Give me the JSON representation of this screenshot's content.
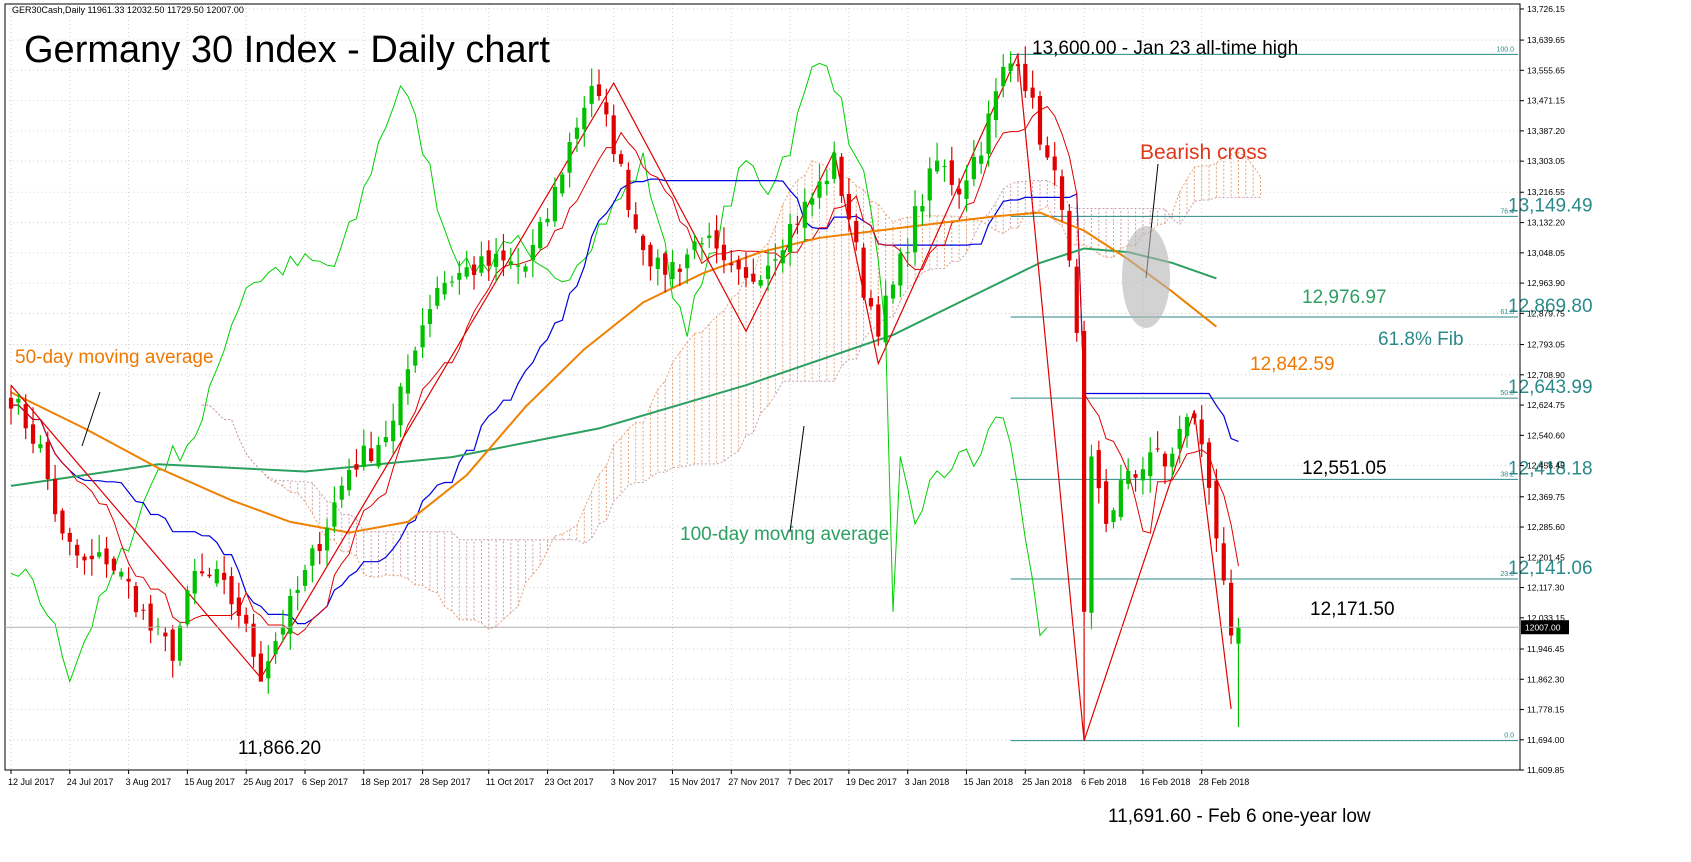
{
  "header": {
    "symbol_info": "GER30Cash,Daily  11961.33 12032.50 11729.50 12007.00",
    "title": "Germany 30 Index - Daily chart"
  },
  "colors": {
    "up": "#00c000",
    "down": "#e00000",
    "ma50": "#f08000",
    "ma100": "#2ca060",
    "fib": "#2a8a8a",
    "tenkan": "#e00000",
    "kijun": "#0000e0",
    "chikou": "#00d000",
    "cloud_bull": "#e8a37a",
    "cloud_bear": "#c8a0b0",
    "zigzag": "#e00000",
    "annot_red": "#e0361a",
    "annot_orange": "#f07800",
    "annot_green": "#2ca060",
    "annot_teal": "#2a8a8a"
  },
  "chart_data": {
    "type": "candlestick",
    "title": "Germany 30 Index - Daily chart",
    "instrument": "GER30Cash",
    "timeframe": "Daily",
    "ohlc_last": {
      "open": 11961.33,
      "high": 12032.5,
      "low": 11729.5,
      "close": 12007.0
    },
    "ylim": [
      11610,
      13740
    ],
    "grid": true,
    "y_ticks": [
      "13,726.15",
      "13,639.65",
      "13,555.65",
      "13,471.15",
      "13,387.20",
      "13,303.05",
      "13,216.55",
      "13,132.20",
      "13,048.05",
      "12,963.90",
      "12,879.75",
      "12,793.05",
      "12,708.90",
      "12,624.75",
      "12,540.60",
      "12,456.45",
      "12,369.75",
      "12,285.60",
      "12,201.45",
      "12,117.30",
      "12,033.15",
      "11,946.45",
      "11,862.30",
      "11,778.15",
      "11,694.00",
      "11,609.85"
    ],
    "y_tick_values": [
      13726.15,
      13639.65,
      13555.65,
      13471.15,
      13387.2,
      13303.05,
      13216.55,
      13132.2,
      13048.05,
      12963.9,
      12879.75,
      12793.05,
      12708.9,
      12624.75,
      12540.6,
      12456.45,
      12369.75,
      12285.6,
      12201.45,
      12117.3,
      12033.15,
      11946.45,
      11862.3,
      11778.15,
      11694.0,
      11609.85
    ],
    "current_price": {
      "label": "12007.00",
      "value": 12007.0
    },
    "x_ticks": [
      {
        "label": "12 Jul 2017",
        "day": 0
      },
      {
        "label": "24 Jul 2017",
        "day": 8
      },
      {
        "label": "3 Aug 2017",
        "day": 16
      },
      {
        "label": "15 Aug 2017",
        "day": 24
      },
      {
        "label": "25 Aug 2017",
        "day": 32
      },
      {
        "label": "6 Sep 2017",
        "day": 40
      },
      {
        "label": "18 Sep 2017",
        "day": 48
      },
      {
        "label": "28 Sep 2017",
        "day": 56
      },
      {
        "label": "11 Oct 2017",
        "day": 65
      },
      {
        "label": "23 Oct 2017",
        "day": 73
      },
      {
        "label": "3 Nov 2017",
        "day": 82
      },
      {
        "label": "15 Nov 2017",
        "day": 90
      },
      {
        "label": "27 Nov 2017",
        "day": 98
      },
      {
        "label": "7 Dec 2017",
        "day": 106
      },
      {
        "label": "19 Dec 2017",
        "day": 114
      },
      {
        "label": "3 Jan 2018",
        "day": 122
      },
      {
        "label": "15 Jan 2018",
        "day": 130
      },
      {
        "label": "25 Jan 2018",
        "day": 138
      },
      {
        "label": "6 Feb 2018",
        "day": 146
      },
      {
        "label": "16 Feb 2018",
        "day": 154
      },
      {
        "label": "28 Feb 2018",
        "day": 162
      }
    ],
    "anchors": [
      [
        0,
        12650
      ],
      [
        4,
        12500
      ],
      [
        7,
        12250
      ],
      [
        10,
        12180
      ],
      [
        13,
        12200
      ],
      [
        16,
        12120
      ],
      [
        19,
        12000
      ],
      [
        22,
        11940
      ],
      [
        25,
        12150
      ],
      [
        28,
        12140
      ],
      [
        31,
        12050
      ],
      [
        34,
        11880
      ],
      [
        37,
        12020
      ],
      [
        40,
        12150
      ],
      [
        43,
        12300
      ],
      [
        46,
        12450
      ],
      [
        49,
        12500
      ],
      [
        52,
        12570
      ],
      [
        55,
        12800
      ],
      [
        58,
        12960
      ],
      [
        62,
        13000
      ],
      [
        66,
        13020
      ],
      [
        70,
        13010
      ],
      [
        73,
        13150
      ],
      [
        76,
        13350
      ],
      [
        79,
        13520
      ],
      [
        82,
        13350
      ],
      [
        85,
        13120
      ],
      [
        88,
        13000
      ],
      [
        91,
        13020
      ],
      [
        94,
        13100
      ],
      [
        97,
        13000
      ],
      [
        100,
        12960
      ],
      [
        103,
        13030
      ],
      [
        106,
        13120
      ],
      [
        109,
        13200
      ],
      [
        112,
        13300
      ],
      [
        114,
        13150
      ],
      [
        116,
        12950
      ],
      [
        118,
        12850
      ],
      [
        120,
        12950
      ],
      [
        123,
        13150
      ],
      [
        126,
        13300
      ],
      [
        129,
        13230
      ],
      [
        132,
        13350
      ],
      [
        135,
        13550
      ],
      [
        137,
        13600
      ],
      [
        139,
        13450
      ],
      [
        141,
        13300
      ],
      [
        143,
        13200
      ],
      [
        145,
        12800
      ],
      [
        146,
        11691.6
      ],
      [
        147,
        12450
      ],
      [
        149,
        12300
      ],
      [
        151,
        12400
      ],
      [
        153,
        12430
      ],
      [
        155,
        12500
      ],
      [
        157,
        12450
      ],
      [
        159,
        12550
      ],
      [
        161,
        12600
      ],
      [
        163,
        12400
      ],
      [
        165,
        12150
      ],
      [
        166,
        11950
      ],
      [
        167,
        12007
      ]
    ],
    "moving_average_50": [
      [
        0,
        12660
      ],
      [
        10,
        12560
      ],
      [
        20,
        12450
      ],
      [
        30,
        12360
      ],
      [
        38,
        12300
      ],
      [
        46,
        12270
      ],
      [
        54,
        12300
      ],
      [
        62,
        12430
      ],
      [
        70,
        12620
      ],
      [
        78,
        12780
      ],
      [
        86,
        12910
      ],
      [
        94,
        12990
      ],
      [
        102,
        13050
      ],
      [
        110,
        13090
      ],
      [
        118,
        13110
      ],
      [
        126,
        13130
      ],
      [
        134,
        13150
      ],
      [
        140,
        13160
      ],
      [
        146,
        13110
      ],
      [
        152,
        13030
      ],
      [
        158,
        12940
      ],
      [
        164,
        12842.59
      ]
    ],
    "moving_average_100": [
      [
        0,
        12400
      ],
      [
        20,
        12460
      ],
      [
        40,
        12440
      ],
      [
        60,
        12480
      ],
      [
        80,
        12560
      ],
      [
        100,
        12680
      ],
      [
        120,
        12820
      ],
      [
        130,
        12920
      ],
      [
        140,
        13020
      ],
      [
        146,
        13060
      ],
      [
        152,
        13050
      ],
      [
        158,
        13020
      ],
      [
        164,
        12976.97
      ]
    ],
    "fibonacci": [
      {
        "level": "100.0",
        "value": 13600.0,
        "label": ""
      },
      {
        "level": "76.4",
        "value": 13149.49,
        "label": "13,149.49"
      },
      {
        "level": "61.8",
        "value": 12869.8,
        "label": "12,869.80"
      },
      {
        "level": "50.0",
        "value": 12643.99,
        "label": "12,643.99"
      },
      {
        "level": "38.2",
        "value": 12418.18,
        "label": "12,418.18"
      },
      {
        "level": "23.6",
        "value": 12141.06,
        "label": "12,141.06"
      },
      {
        "level": "0.0",
        "value": 11691.6,
        "label": ""
      }
    ],
    "annotations": {
      "high": "13,600.00 - Jan 23 all-time high",
      "low": "11,691.60 - Feb 6 one-year low",
      "aug_low": "11,866.20",
      "bearish_cross": "Bearish cross",
      "ma50_label": "50-day moving average",
      "ma100_label": "100-day moving average",
      "fib_618_label": "61.8% Fib",
      "ma100_value": "12,976.97",
      "ma50_value": "12,842.59",
      "kijun_value": "12,551.05",
      "tenkan_value": "12,171.50"
    }
  }
}
